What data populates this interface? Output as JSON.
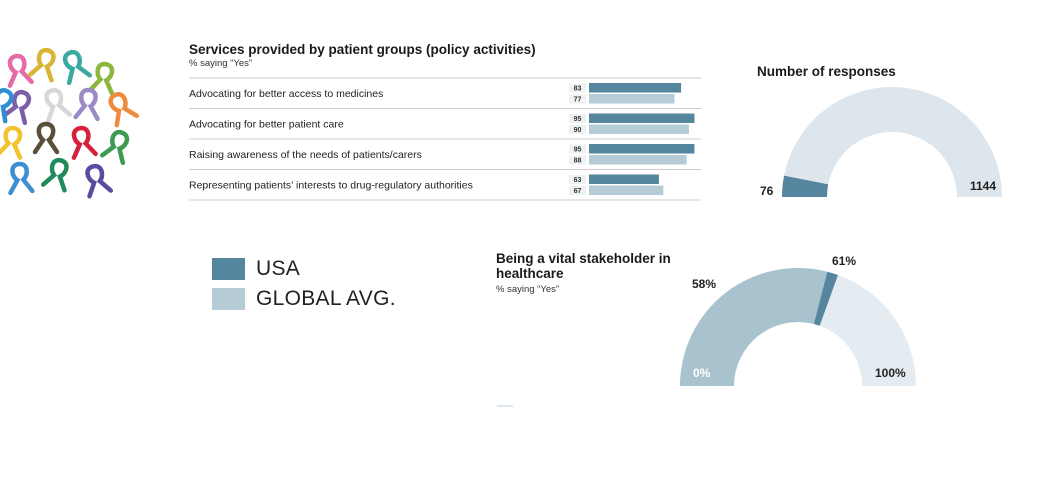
{
  "colors": {
    "usa": "#56869d",
    "global": "#b5cbd6",
    "track": "#dde6ec",
    "track_light": "#e4ecf1",
    "vital_fill": "#a8c2ce",
    "divider": "#cccccc"
  },
  "icons": {
    "ribbons": "awareness-ribbons-decoration"
  },
  "chart_data": [
    {
      "type": "bar",
      "title": "Services provided by patient groups (policy activities)",
      "subtitle": "% saying “Yes”",
      "categories": [
        "Advocating for better access to medicines",
        "Advocating for better patient care",
        "Raising awareness of the needs of patients/carers",
        "Representing patients’ interests to drug-regulatory authorities"
      ],
      "series": [
        {
          "name": "USA",
          "values": [
            83,
            95,
            95,
            63
          ]
        },
        {
          "name": "GLOBAL AVG.",
          "values": [
            77,
            90,
            88,
            67
          ]
        }
      ],
      "xlim": [
        0,
        100
      ],
      "legend": "bottom-left",
      "grid": false
    },
    {
      "type": "pie",
      "title": "Number of responses",
      "values": [
        76,
        1144
      ],
      "labels": [
        "76",
        "1144"
      ]
    },
    {
      "type": "pie",
      "title": "Being a vital stakeholder in healthcare",
      "subtitle": "% saying “Yes”",
      "usa_value": 58,
      "global_value": 61,
      "range": [
        0,
        100
      ],
      "labels": {
        "usa": "58%",
        "global": "61%",
        "min": "0%",
        "max": "100%"
      }
    }
  ],
  "legend": [
    {
      "label": "USA",
      "color": "#56869d"
    },
    {
      "label": "GLOBAL AVG.",
      "color": "#b5cbd6"
    }
  ]
}
